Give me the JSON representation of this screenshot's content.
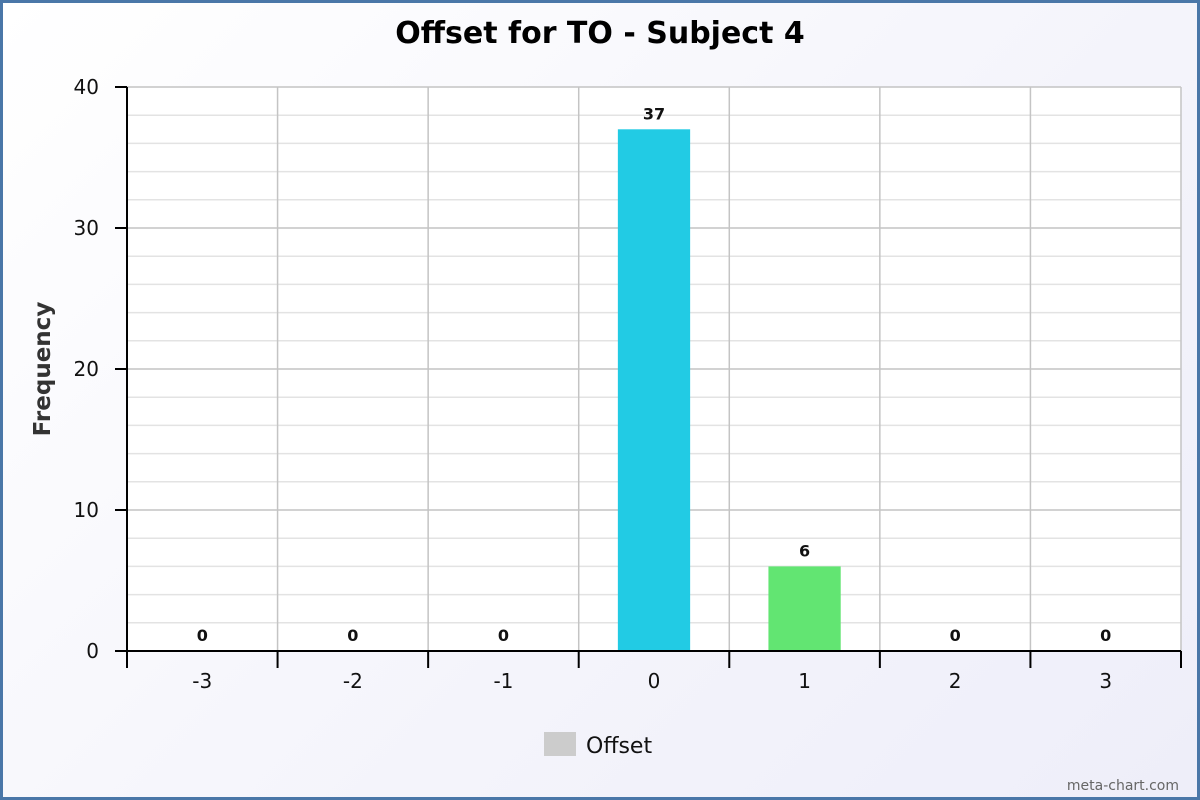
{
  "chart_data": {
    "type": "bar",
    "title": "Offset for TO - Subject 4",
    "xlabel": "",
    "ylabel": "Frequency",
    "categories": [
      "-3",
      "-2",
      "-1",
      "0",
      "1",
      "2",
      "3"
    ],
    "values": [
      0,
      0,
      0,
      37,
      6,
      0,
      0
    ],
    "bar_colors": [
      "#22cbe4",
      "#22cbe4",
      "#22cbe4",
      "#22cbe4",
      "#62e572",
      "#22cbe4",
      "#22cbe4"
    ],
    "ylim": [
      0,
      40
    ],
    "yticks": [
      0,
      10,
      20,
      30,
      40
    ],
    "grid": true,
    "legend": {
      "position": "bottom-center",
      "entries": [
        {
          "label": "Offset",
          "color": "#cccccc"
        }
      ]
    }
  },
  "credit": "meta-chart.com"
}
